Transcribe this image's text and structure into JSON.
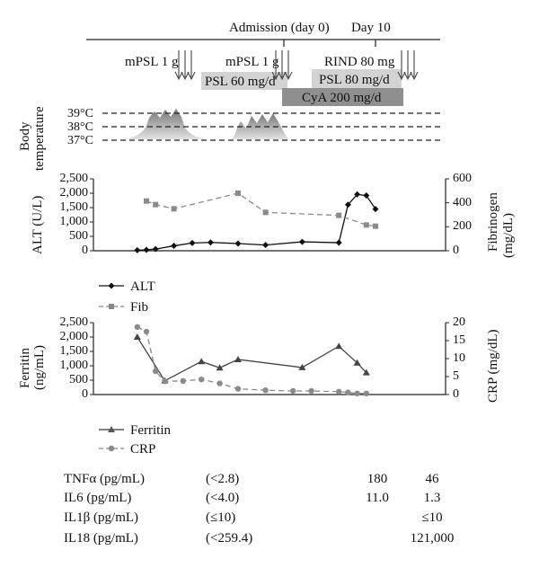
{
  "timeline": {
    "admission_label": "Admission (day 0)",
    "day10_label": "Day 10",
    "treatments": [
      {
        "label": "mPSL 1 g"
      },
      {
        "label": "mPSL 1 g"
      },
      {
        "label": "RIND 80 mg"
      },
      {
        "label": "PSL 60 mg/d"
      },
      {
        "label": "PSL 80 mg/d"
      },
      {
        "label": "CyA 200 mg/d"
      }
    ]
  },
  "temperature": {
    "label_line1": "Body",
    "label_line2": "temperature",
    "levels": [
      "39°C",
      "38°C",
      "37°C"
    ]
  },
  "chart_data": [
    {
      "type": "line",
      "y_left_label": "ALT (U/L)",
      "y_right_label_line1": "Fibrinogen",
      "y_right_label_line2": "(mg/dL)",
      "y_left_ticks": [
        "0",
        "500",
        "1,000",
        "1,500",
        "2,000",
        "2,500"
      ],
      "y_right_ticks": [
        "0",
        "200",
        "400",
        "600"
      ],
      "ylim_left": [
        0,
        2500
      ],
      "ylim_right": [
        0,
        600
      ],
      "legend_position": "bottom-left",
      "series": [
        {
          "name": "ALT",
          "axis": "left",
          "marker": "diamond",
          "style": "solid",
          "x": [
            -16,
            -15,
            -14,
            -12,
            -10,
            -8,
            -5,
            -2,
            2,
            6,
            7,
            8,
            9,
            10
          ],
          "values": [
            20,
            30,
            60,
            170,
            270,
            290,
            250,
            200,
            310,
            280,
            1600,
            1960,
            1920,
            1450
          ]
        },
        {
          "name": "Fib",
          "axis": "right",
          "marker": "square",
          "style": "dashed",
          "x": [
            -15,
            -14,
            -12,
            -5,
            -2,
            6,
            9,
            10
          ],
          "values": [
            415,
            385,
            350,
            480,
            320,
            295,
            215,
            205
          ]
        }
      ]
    },
    {
      "type": "line",
      "y_left_label_line1": "Ferritin",
      "y_left_label_line2": "(ng/mL)",
      "y_right_label": "CRP (mg/dL)",
      "y_left_ticks": [
        "0",
        "500",
        "1,000",
        "1,500",
        "2,000",
        "2,500"
      ],
      "y_right_ticks": [
        "0",
        "5",
        "10",
        "15",
        "20"
      ],
      "ylim_left": [
        0,
        2500
      ],
      "ylim_right": [
        0,
        20
      ],
      "legend_position": "bottom-left",
      "series": [
        {
          "name": "Ferritin",
          "axis": "left",
          "marker": "triangle",
          "style": "solid",
          "x": [
            -16,
            -13,
            -9,
            -7,
            -5,
            2,
            6,
            8,
            9
          ],
          "values": [
            2000,
            480,
            1150,
            930,
            1220,
            940,
            1680,
            1100,
            760
          ]
        },
        {
          "name": "CRP",
          "axis": "right",
          "marker": "circle",
          "style": "dashed",
          "x": [
            -16,
            -15,
            -14,
            -13,
            -11,
            -9,
            -7,
            -5,
            -2,
            1,
            3,
            6,
            7,
            8,
            9
          ],
          "values": [
            18.8,
            17.5,
            6.5,
            3.7,
            3.8,
            4.2,
            3.1,
            1.6,
            1.2,
            1.0,
            1.0,
            0.8,
            0.6,
            0.3,
            0.3
          ]
        }
      ]
    }
  ],
  "cytokines": {
    "rows": [
      {
        "name": "TNFα (pg/mL)",
        "ref": "(<2.8)",
        "v1": "180",
        "v2": "46"
      },
      {
        "name": "IL6 (pg/mL)",
        "ref": "(<4.0)",
        "v1": "11.0",
        "v2": "1.3"
      },
      {
        "name": "IL1β (pg/mL)",
        "ref": "(≤10)",
        "v1": "",
        "v2": "≤10"
      },
      {
        "name": "IL18 (pg/mL)",
        "ref": "(<259.4)",
        "v1": "",
        "v2": "121,000"
      }
    ]
  }
}
